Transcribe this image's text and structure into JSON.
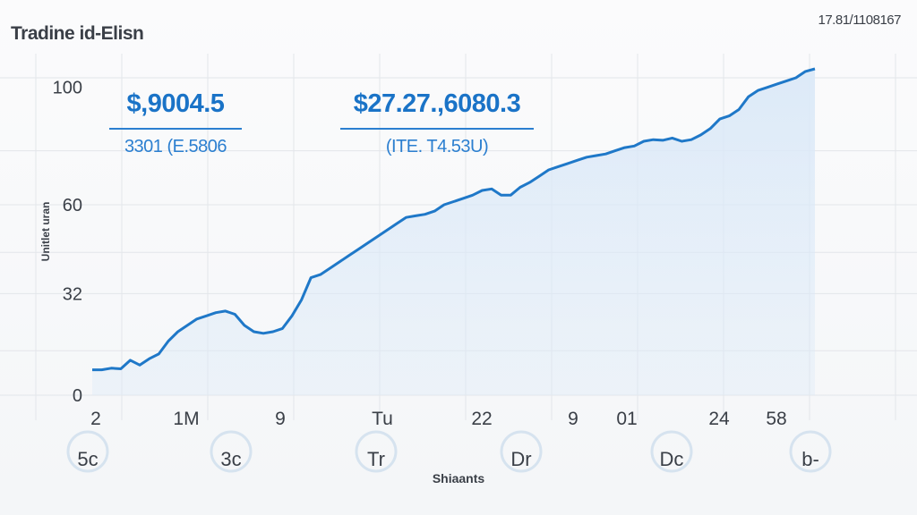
{
  "header": {
    "title": "Tradine id-Elisn",
    "corner_text": "17.81/1108167"
  },
  "stats": [
    {
      "value": "$,9004.5",
      "sub": "3301 (E.5806"
    },
    {
      "value": "$27.27.,6080.3",
      "sub": "(ITE. T4.53U)"
    }
  ],
  "chart_data": {
    "type": "area",
    "title": "Tradine id-Elisn",
    "xlabel": "Shiaants",
    "ylabel": "Unitlet uran",
    "y_ticks": [
      "100",
      "60",
      "32",
      "0"
    ],
    "x_ticks": [
      "2",
      "1M",
      "9",
      "Tu",
      "22",
      "9",
      "01",
      "24",
      "58"
    ],
    "x_ticks_lower": [
      "5c",
      "3c",
      "Tr",
      "Dr",
      "Dc",
      "b-"
    ],
    "ylim": [
      0,
      100
    ],
    "grid": true,
    "line_color": "#1f78c8",
    "fill_color": "#dbe9f8",
    "series": [
      {
        "values": [
          8,
          8,
          8.5,
          8.3,
          11,
          9.5,
          11.5,
          13,
          17,
          20,
          22,
          24,
          25,
          26,
          26.5,
          25.5,
          22,
          20,
          19.5,
          20,
          21,
          25,
          30,
          37,
          38,
          40,
          42,
          44,
          46,
          48,
          50,
          52,
          54,
          56,
          56.5,
          57,
          58,
          60,
          61,
          62,
          63,
          64.5,
          65,
          63,
          63,
          65.5,
          67,
          69,
          71,
          72,
          73,
          74,
          75,
          75.5,
          76,
          77,
          78,
          78.5,
          80,
          80.5,
          80.3,
          81,
          80,
          80.5,
          82,
          84,
          87,
          88,
          90,
          94,
          96,
          97,
          98,
          99,
          100,
          102,
          106
        ]
      }
    ]
  }
}
